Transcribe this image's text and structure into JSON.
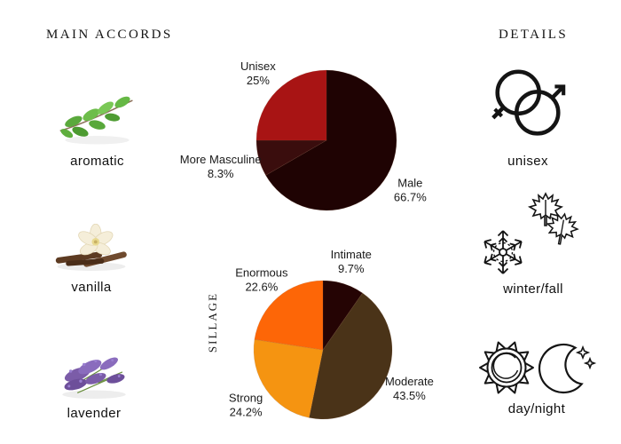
{
  "page": {
    "background": "#ffffff"
  },
  "headings": {
    "main_accords": "MAIN ACCORDS",
    "details": "DETAILS"
  },
  "accords": {
    "items": [
      {
        "name": "aromatic",
        "icon": "aromatic-sprig-illustration"
      },
      {
        "name": "vanilla",
        "icon": "vanilla-flower-pods-illustration"
      },
      {
        "name": "lavender",
        "icon": "lavender-sprig-illustration"
      }
    ]
  },
  "details": {
    "items": [
      {
        "label": "unisex",
        "icon": "gender-unisex-icon"
      },
      {
        "label": "winter/fall",
        "icon": "snowflake-maple-leaves-icon"
      },
      {
        "label": "day/night",
        "icon": "sun-moon-icon"
      }
    ]
  },
  "chart_data": [
    {
      "type": "pie",
      "name": "gender",
      "title": "",
      "ylabel": "",
      "direction": "clockwise",
      "start_angle_deg": 0,
      "label_position": "outside",
      "slices": [
        {
          "label": "Male",
          "pct": 66.7,
          "display": "66.7%",
          "color": "#1f0303"
        },
        {
          "label": "More Masculine",
          "pct": 8.3,
          "display": "8.3%",
          "color": "#3a0d0d",
          "label_dx": -14
        },
        {
          "label": "Unisex",
          "pct": 25,
          "display": "25%",
          "color": "#a81414"
        }
      ]
    },
    {
      "type": "pie",
      "name": "sillage",
      "title": "",
      "ylabel": "SILLAGE",
      "direction": "clockwise",
      "start_angle_deg": 0,
      "label_position": "outside",
      "slices": [
        {
          "label": "Intimate",
          "pct": 9.7,
          "display": "9.7%",
          "color": "#250404"
        },
        {
          "label": "Moderate",
          "pct": 43.5,
          "display": "43.5%",
          "color": "#4a3318"
        },
        {
          "label": "Strong",
          "pct": 24.2,
          "display": "24.2%",
          "color": "#f59411"
        },
        {
          "label": "Enormous",
          "pct": 22.6,
          "display": "22.6%",
          "color": "#fd6607"
        }
      ]
    }
  ]
}
